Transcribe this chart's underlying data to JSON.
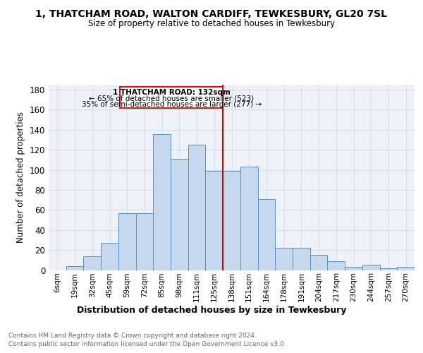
{
  "title": "1, THATCHAM ROAD, WALTON CARDIFF, TEWKESBURY, GL20 7SL",
  "subtitle": "Size of property relative to detached houses in Tewkesbury",
  "xlabel": "Distribution of detached houses by size in Tewkesbury",
  "ylabel": "Number of detached properties",
  "bar_labels": [
    "6sqm",
    "19sqm",
    "32sqm",
    "45sqm",
    "59sqm",
    "72sqm",
    "85sqm",
    "98sqm",
    "111sqm",
    "125sqm",
    "138sqm",
    "151sqm",
    "164sqm",
    "178sqm",
    "191sqm",
    "204sqm",
    "217sqm",
    "230sqm",
    "244sqm",
    "257sqm",
    "270sqm"
  ],
  "bar_values": [
    0,
    4,
    14,
    27,
    57,
    57,
    136,
    111,
    125,
    99,
    99,
    103,
    71,
    22,
    22,
    15,
    9,
    3,
    5,
    2,
    3
  ],
  "bar_color": "#c5d8ed",
  "bar_edge_color": "#5a8fc2",
  "annotation_text_line1": "1 THATCHAM ROAD: 132sqm",
  "annotation_text_line2": "← 65% of detached houses are smaller (523)",
  "annotation_text_line3": "35% of semi-detached houses are larger (277) →",
  "vline_color": "#cc0000",
  "grid_color": "#d0d8e8",
  "background_color": "#eef2f8",
  "footnote1": "Contains HM Land Registry data © Crown copyright and database right 2024.",
  "footnote2": "Contains public sector information licensed under the Open Government Licence v3.0.",
  "ylim": [
    0,
    185
  ],
  "yticks": [
    0,
    20,
    40,
    60,
    80,
    100,
    120,
    140,
    160,
    180
  ]
}
